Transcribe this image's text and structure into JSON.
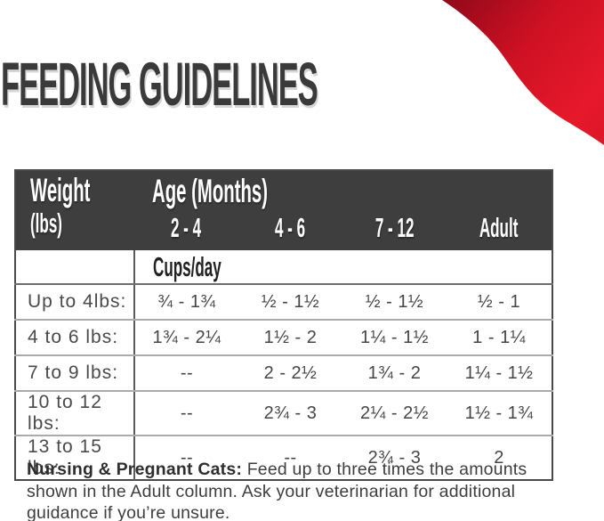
{
  "page": {
    "title": "FEEDING GUIDELINES"
  },
  "colors": {
    "header_bg": "#3f3e3e",
    "title_text": "#3a3a3a",
    "accent_red": "#e6192b",
    "accent_red_dark": "#8f0918",
    "accent_red_mid": "#cf1124"
  },
  "table": {
    "weight_label": "Weight",
    "weight_unit": "(lbs)",
    "age_label": "Age (Months)",
    "age_columns": [
      "2 - 4",
      "4 - 6",
      "7 - 12",
      "Adult"
    ],
    "units_label": "Cups/day",
    "rows": [
      {
        "label": "Up to 4lbs:",
        "values": [
          "¾ - 1¾",
          "½ - 1½",
          "½ - 1½",
          "½ - 1"
        ]
      },
      {
        "label": "4 to 6 lbs:",
        "values": [
          "1¾ - 2¼",
          "1½ - 2",
          "1¼ - 1½",
          "1 - 1¼"
        ]
      },
      {
        "label": "7 to 9 lbs:",
        "values": [
          "--",
          "2 - 2½",
          "1¾ - 2",
          "1¼ - 1½"
        ]
      },
      {
        "label": "10 to 12 lbs:",
        "values": [
          "--",
          "2¾ - 3",
          "2¼ - 2½",
          "1½ - 1¾"
        ]
      },
      {
        "label": "13 to 15 lbs:",
        "values": [
          "--",
          "--",
          "2¾ - 3",
          "2"
        ]
      }
    ]
  },
  "footer": {
    "bold_lead": "Nursing & Pregnant Cats:",
    "text": " Feed up to three times the amounts shown in the Adult column. Ask your veterinarian for additional guidance if you’re unsure."
  }
}
